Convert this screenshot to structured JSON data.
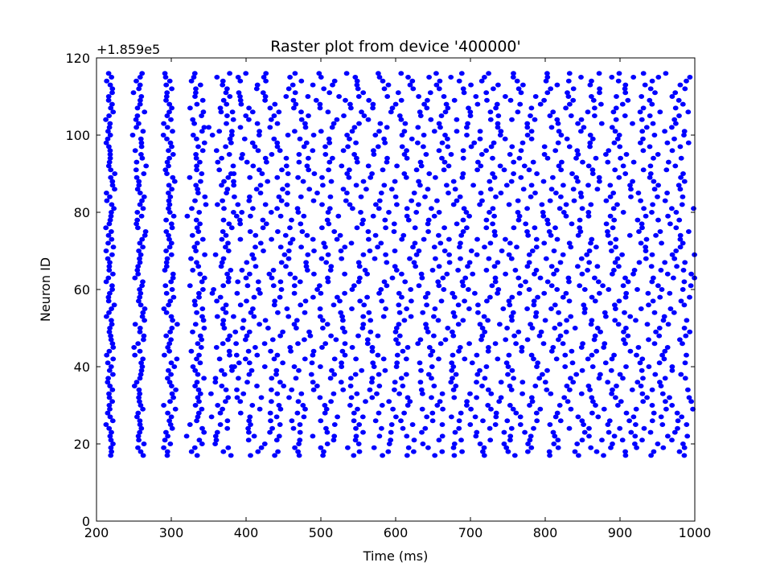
{
  "chart_data": {
    "type": "scatter",
    "title": "Raster plot from device '400000'",
    "xlabel": "Time (ms)",
    "ylabel": "Neuron ID",
    "y_offset_label": "+1.859e5",
    "xlim": [
      200,
      1000
    ],
    "ylim": [
      0,
      120
    ],
    "xticks": [
      "200",
      "300",
      "400",
      "500",
      "600",
      "700",
      "800",
      "900",
      "1000"
    ],
    "yticks": [
      "0",
      "20",
      "40",
      "60",
      "80",
      "100",
      "120"
    ],
    "marker_color": "#0000ff",
    "grid": false,
    "legend": "none",
    "neuron_id_range": [
      17,
      116
    ],
    "spike_waves": [
      {
        "t": 218,
        "spread": 4,
        "neurons": "all"
      },
      {
        "t": 258,
        "spread": 5,
        "neurons": "all"
      },
      {
        "t": 298,
        "spread": 6,
        "neurons": "all"
      },
      {
        "t": 335,
        "spread": 9,
        "neurons": "all"
      },
      {
        "t": 370,
        "spread": 12,
        "neurons": "all"
      }
    ],
    "steady_state": {
      "t_start": 385,
      "t_end": 998,
      "mean_isi_ms": 37
    }
  }
}
